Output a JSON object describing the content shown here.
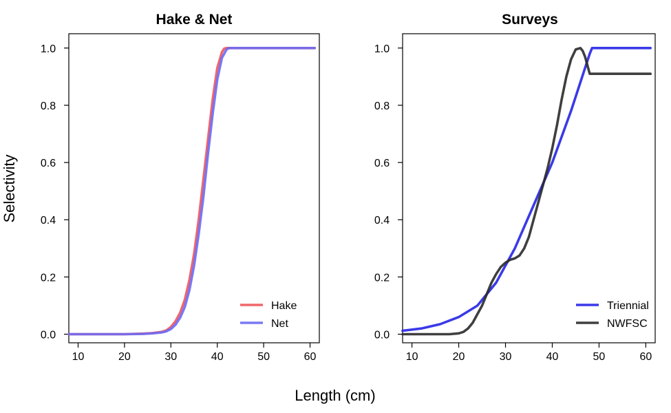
{
  "xlabel": "Length (cm)",
  "ylabel": "Selectivity",
  "chart_data": [
    {
      "type": "line",
      "title": "Hake & Net",
      "xlim": [
        8,
        62
      ],
      "ylim": [
        -0.03,
        1.05
      ],
      "xticks": [
        10,
        20,
        30,
        40,
        50,
        60
      ],
      "yticks": [
        0.0,
        0.2,
        0.4,
        0.6,
        0.8,
        1.0
      ],
      "ytick_labels": [
        "0.0",
        "0.2",
        "0.4",
        "0.6",
        "0.8",
        "1.0"
      ],
      "legend_position": "bottom-right",
      "series": [
        {
          "name": "Hake",
          "color": "#f0555a",
          "x": [
            8,
            20,
            24,
            26,
            28,
            29,
            30,
            31,
            32,
            33,
            34,
            35,
            36,
            37,
            38,
            39,
            40,
            41,
            41.5,
            42,
            43,
            50,
            61
          ],
          "y": [
            0,
            0,
            0.002,
            0.004,
            0.008,
            0.013,
            0.025,
            0.045,
            0.075,
            0.12,
            0.19,
            0.28,
            0.4,
            0.54,
            0.68,
            0.82,
            0.93,
            0.985,
            0.998,
            1.0,
            1.0,
            1.0,
            1.0
          ]
        },
        {
          "name": "Net",
          "color": "#6a6af5",
          "x": [
            8,
            20,
            24,
            26,
            28,
            29,
            30,
            31,
            32,
            33,
            34,
            35,
            36,
            37,
            38,
            39,
            40,
            41,
            42,
            42.5,
            43,
            50,
            61
          ],
          "y": [
            0,
            0,
            0.001,
            0.003,
            0.006,
            0.01,
            0.018,
            0.033,
            0.058,
            0.095,
            0.155,
            0.24,
            0.35,
            0.48,
            0.63,
            0.77,
            0.89,
            0.965,
            0.995,
            1.0,
            1.0,
            1.0,
            1.0
          ]
        }
      ]
    },
    {
      "type": "line",
      "title": "Surveys",
      "xlim": [
        8,
        62
      ],
      "ylim": [
        -0.03,
        1.05
      ],
      "xticks": [
        10,
        20,
        30,
        40,
        50,
        60
      ],
      "yticks": [
        0.0,
        0.2,
        0.4,
        0.6,
        0.8,
        1.0
      ],
      "ytick_labels": [
        "0.0",
        "0.2",
        "0.4",
        "0.6",
        "0.8",
        "1.0"
      ],
      "legend_position": "bottom-right",
      "series": [
        {
          "name": "Triennial",
          "color": "#2525e6",
          "x": [
            8,
            12,
            16,
            20,
            24,
            28,
            32,
            36,
            40,
            44,
            48,
            48.5,
            61
          ],
          "y": [
            0.012,
            0.02,
            0.035,
            0.06,
            0.1,
            0.18,
            0.3,
            0.45,
            0.6,
            0.78,
            0.98,
            1.0,
            1.0
          ]
        },
        {
          "name": "NWFSC",
          "color": "#2a2a2a",
          "x": [
            8,
            18,
            20,
            21,
            22,
            23,
            24,
            25,
            26,
            27,
            28,
            29,
            30,
            31,
            32,
            33,
            34,
            35,
            36,
            37,
            38,
            39,
            40,
            41,
            42,
            43,
            44,
            45,
            46,
            46.5,
            47,
            47.5,
            48,
            48.5,
            61
          ],
          "y": [
            0,
            0,
            0.003,
            0.008,
            0.02,
            0.04,
            0.07,
            0.1,
            0.14,
            0.18,
            0.21,
            0.235,
            0.25,
            0.26,
            0.265,
            0.275,
            0.3,
            0.34,
            0.4,
            0.46,
            0.52,
            0.58,
            0.65,
            0.73,
            0.82,
            0.9,
            0.96,
            0.995,
            1.0,
            0.99,
            0.97,
            0.94,
            0.91,
            0.91,
            0.91
          ]
        }
      ]
    }
  ]
}
